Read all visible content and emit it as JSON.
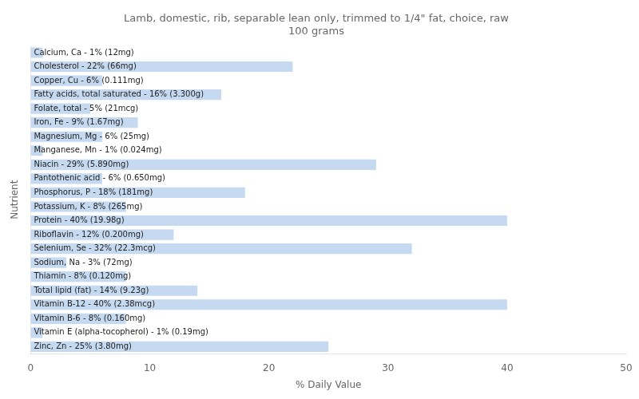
{
  "chart_data": {
    "type": "bar",
    "orientation": "horizontal",
    "title": "Lamb, domestic, rib, separable lean only, trimmed to 1/4\" fat, choice, raw\n100 grams",
    "xlabel": "% Daily Value",
    "ylabel": "Nutrient",
    "categories": [
      "Calcium, Ca - 1% (12mg)",
      "Cholesterol - 22% (66mg)",
      "Copper, Cu - 6% (0.111mg)",
      "Fatty acids, total saturated - 16% (3.300g)",
      "Folate, total - 5% (21mcg)",
      "Iron, Fe - 9% (1.67mg)",
      "Magnesium, Mg - 6% (25mg)",
      "Manganese, Mn - 1% (0.024mg)",
      "Niacin - 29% (5.890mg)",
      "Pantothenic acid - 6% (0.650mg)",
      "Phosphorus, P - 18% (181mg)",
      "Potassium, K - 8% (265mg)",
      "Protein - 40% (19.98g)",
      "Riboflavin - 12% (0.200mg)",
      "Selenium, Se - 32% (22.3mcg)",
      "Sodium, Na - 3% (72mg)",
      "Thiamin - 8% (0.120mg)",
      "Total lipid (fat) - 14% (9.23g)",
      "Vitamin B-12 - 40% (2.38mcg)",
      "Vitamin B-6 - 8% (0.160mg)",
      "Vitamin E (alpha-tocopherol) - 1% (0.19mg)",
      "Zinc, Zn - 25% (3.80mg)"
    ],
    "values": [
      1,
      22,
      6,
      16,
      5,
      9,
      6,
      1,
      29,
      6,
      18,
      8,
      40,
      12,
      32,
      3,
      8,
      14,
      40,
      8,
      1,
      25
    ],
    "color": "#c5d9f1",
    "xlim": [
      0,
      50
    ],
    "xticks": [
      0,
      10,
      20,
      30,
      40,
      50
    ],
    "grid": false,
    "tick_labels": "x"
  }
}
